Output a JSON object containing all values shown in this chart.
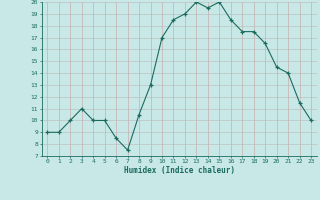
{
  "x": [
    0,
    1,
    2,
    3,
    4,
    5,
    6,
    7,
    8,
    9,
    10,
    11,
    12,
    13,
    14,
    15,
    16,
    17,
    18,
    19,
    20,
    21,
    22,
    23
  ],
  "y": [
    9,
    9,
    10,
    11,
    10,
    10,
    8.5,
    7.5,
    10.5,
    13,
    17,
    18.5,
    19,
    20,
    19.5,
    20,
    18.5,
    17.5,
    17.5,
    16.5,
    14.5,
    14,
    11.5,
    10
  ],
  "ylim": [
    7,
    20
  ],
  "yticks": [
    7,
    8,
    9,
    10,
    11,
    12,
    13,
    14,
    15,
    16,
    17,
    18,
    19,
    20
  ],
  "xticks": [
    0,
    1,
    2,
    3,
    4,
    5,
    6,
    7,
    8,
    9,
    10,
    11,
    12,
    13,
    14,
    15,
    16,
    17,
    18,
    19,
    20,
    21,
    22,
    23
  ],
  "xlabel": "Humidex (Indice chaleur)",
  "line_color": "#1a6b5e",
  "marker": "+",
  "bg_color": "#c8e8e8",
  "grid_color_major": "#b0b0b0",
  "grid_color_minor": "#d8c8c8",
  "tick_color": "#1a6b5e",
  "label_color": "#1a6b5e",
  "spine_color": "#1a6b5e"
}
